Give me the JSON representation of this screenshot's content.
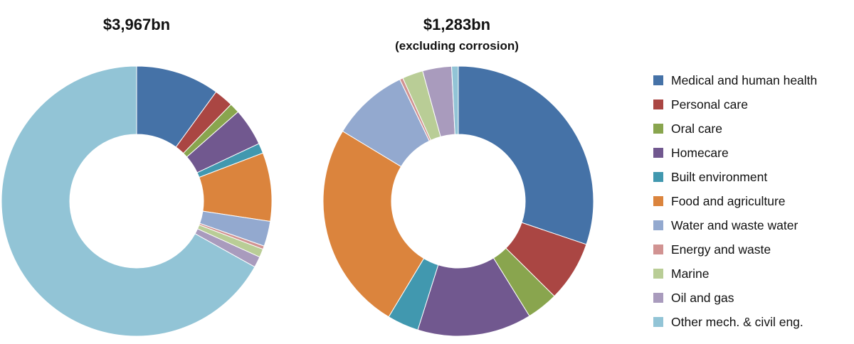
{
  "chart_data": [
    {
      "type": "donut",
      "title": "$3,967bn",
      "subtitle": "",
      "categories": [
        "Medical and human health",
        "Personal care",
        "Oral care",
        "Homecare",
        "Built environment",
        "Food and agriculture",
        "Water and waste water",
        "Energy and waste",
        "Marine",
        "Oil and gas",
        "Other mech. & civil eng."
      ],
      "values": [
        10.0,
        2.3,
        1.2,
        4.5,
        1.2,
        8.2,
        3.0,
        0.4,
        1.0,
        1.3,
        66.9
      ],
      "value_unit": "percent of total (estimated)"
    },
    {
      "type": "donut",
      "title": "$1,283bn",
      "subtitle": "(excluding corrosion)",
      "categories": [
        "Medical and human health",
        "Personal care",
        "Oral care",
        "Homecare",
        "Built environment",
        "Food and agriculture",
        "Water and waste water",
        "Energy and waste",
        "Marine",
        "Oil and gas",
        "Other mech. & civil eng."
      ],
      "values": [
        30.5,
        7.3,
        3.8,
        13.8,
        3.8,
        25.3,
        9.3,
        0.4,
        2.5,
        3.5,
        0.8
      ],
      "value_unit": "percent of total (estimated)"
    }
  ],
  "legend": {
    "position": "right",
    "items": [
      {
        "label": "Medical and human health",
        "color": "#4572a7"
      },
      {
        "label": "Personal care",
        "color": "#aa4643"
      },
      {
        "label": "Oral care",
        "color": "#89a54e"
      },
      {
        "label": "Homecare",
        "color": "#71588f"
      },
      {
        "label": "Built environment",
        "color": "#4198af"
      },
      {
        "label": "Food and agriculture",
        "color": "#db843d"
      },
      {
        "label": "Water and waste water",
        "color": "#93a9cf"
      },
      {
        "label": "Energy and waste",
        "color": "#d19392"
      },
      {
        "label": "Marine",
        "color": "#b9cd96"
      },
      {
        "label": "Oil and gas",
        "color": "#a99bbd"
      },
      {
        "label": "Other mech. & civil eng.",
        "color": "#92c4d6"
      }
    ]
  }
}
